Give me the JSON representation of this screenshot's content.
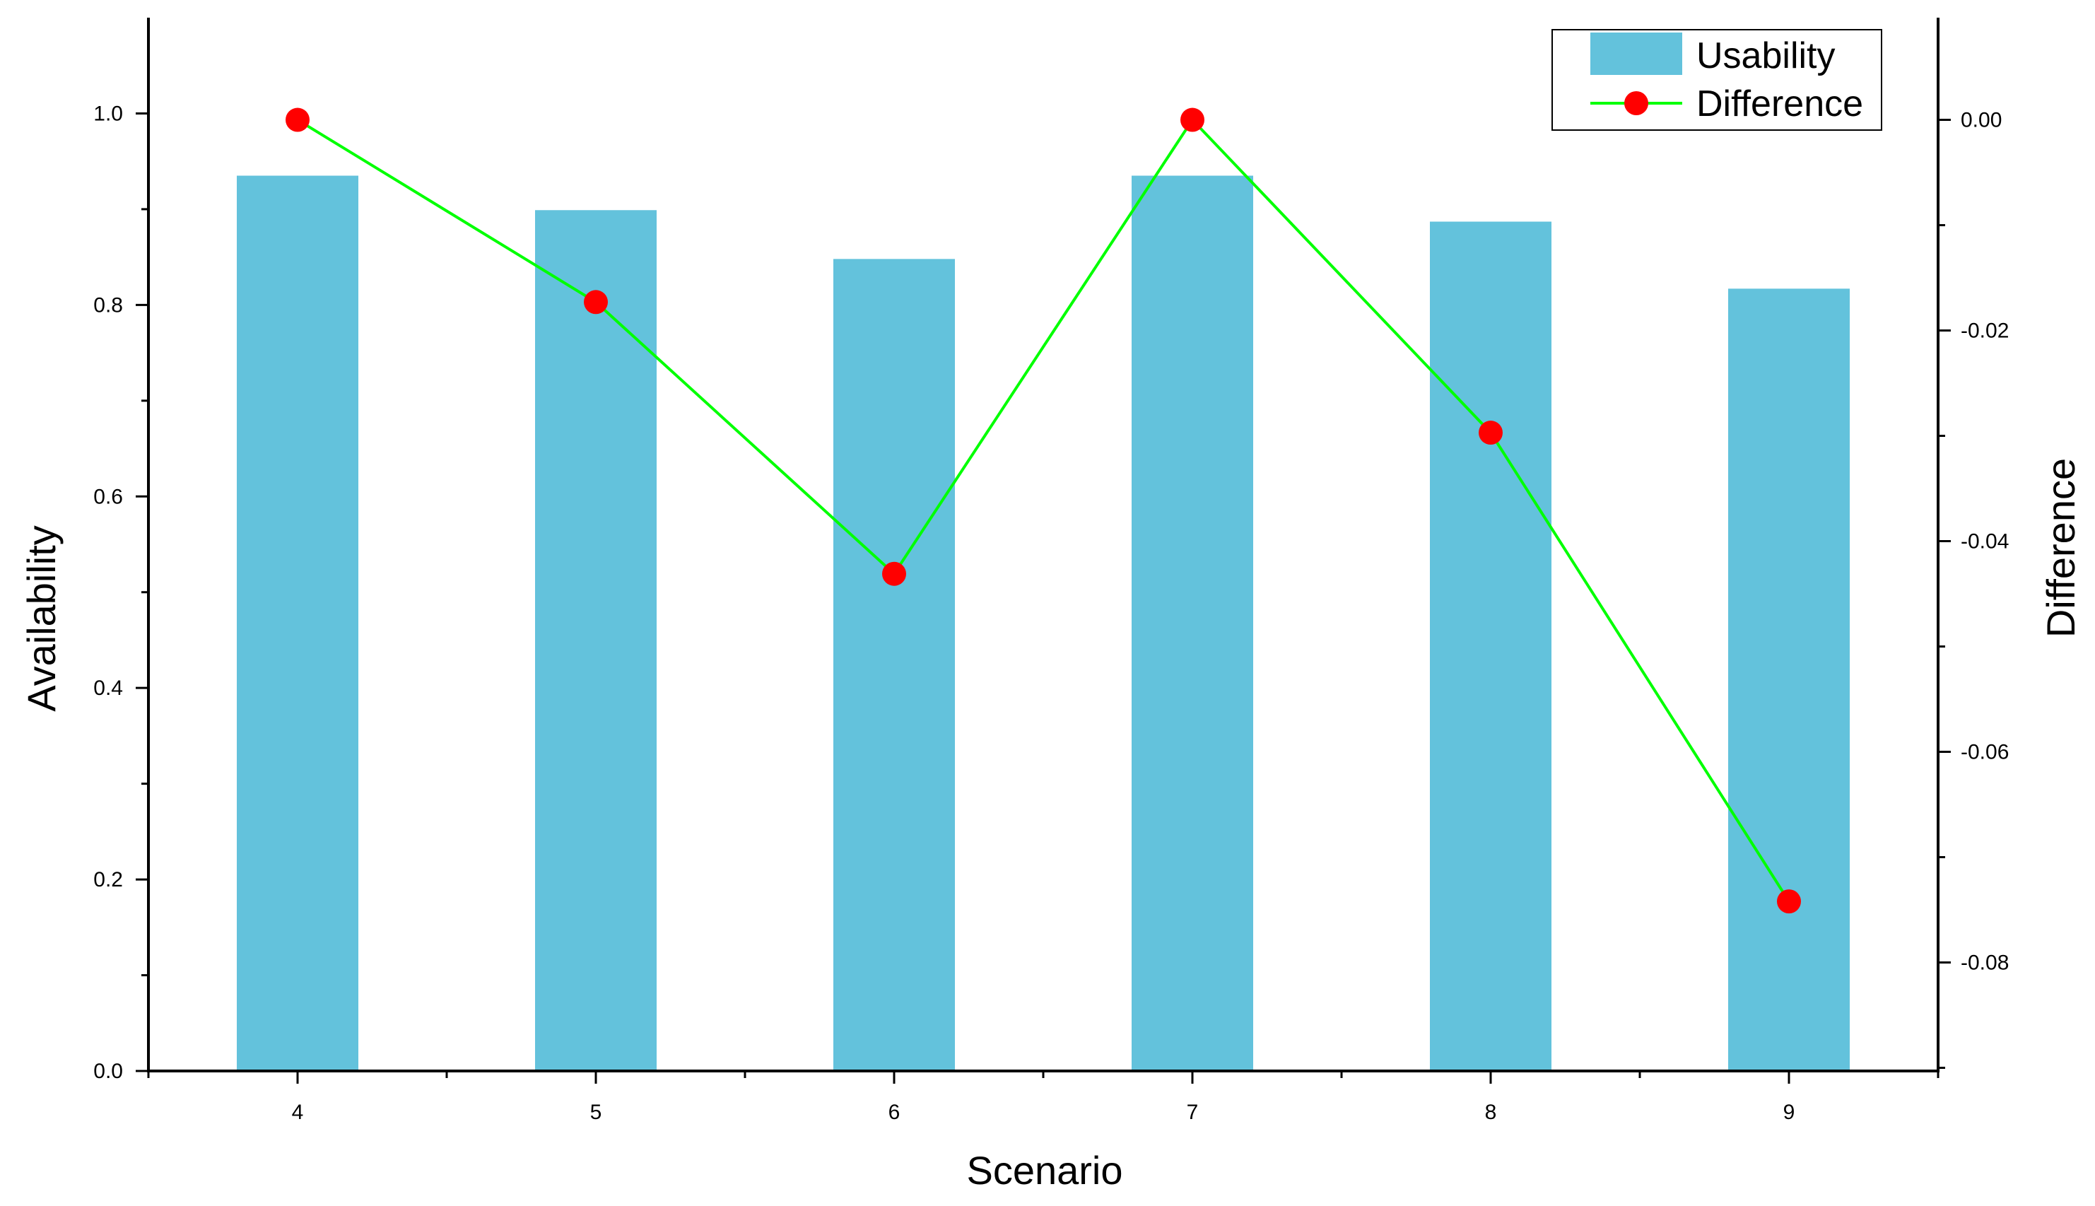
{
  "chart_data": {
    "type": "bar",
    "categories": [
      "4",
      "5",
      "6",
      "7",
      "8",
      "9"
    ],
    "series": [
      {
        "name": "Usability",
        "type": "bar",
        "axis": "left",
        "values": [
          0.935,
          0.899,
          0.848,
          0.935,
          0.887,
          0.817
        ]
      },
      {
        "name": "Difference",
        "type": "line",
        "axis": "right",
        "values": [
          0.0,
          -0.0173,
          -0.0431,
          0.0,
          -0.0297,
          -0.0742
        ]
      }
    ],
    "xlabel": "Scenario",
    "ylabel": "Availability",
    "y2label": "Difference",
    "ylim": [
      0,
      1.1
    ],
    "y2lim": [
      -0.0903,
      0.0097
    ],
    "yticks": [
      0.0,
      0.2,
      0.4,
      0.6,
      0.8,
      1.0
    ],
    "ytick_labels": [
      "0.0",
      "0.2",
      "0.4",
      "0.6",
      "0.8",
      "1.0"
    ],
    "y2ticks": [
      0.0,
      -0.02,
      -0.04,
      -0.06,
      -0.08
    ],
    "y2tick_labels": [
      "0.00",
      "-0.02",
      "-0.04",
      "-0.06",
      "-0.08"
    ],
    "legend_position": "top-right",
    "grid": false,
    "colors": {
      "bar": "#63c2dc",
      "line": "#00ff00",
      "marker": "#ff0000"
    }
  }
}
